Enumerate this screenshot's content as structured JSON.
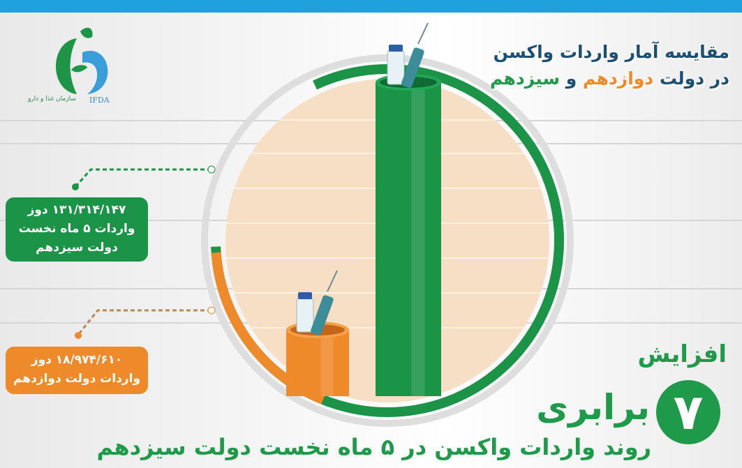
{
  "title": {
    "line1": "مقایسه آمار واردات واکسن",
    "line2_prefix": "در دولت ",
    "line2_twelfth": "دوازدهم",
    "line2_and": " و ",
    "line2_thirteenth": "سیزدهم"
  },
  "logo": {
    "org_name": "سازمان غذا و دارو",
    "abbr": "IFDA"
  },
  "boxes": {
    "thirteenth": {
      "line1": "۱۳۱/۳۱۴/۱۴۷ دوز",
      "line2": "واردات ۵ ماه نخست",
      "line3": "دولت سیزدهم"
    },
    "twelfth": {
      "line1": "۱۸/۹۷۴/۶۱۰ دوز",
      "line2": "واردات دولت دوازدهم"
    }
  },
  "highlight": {
    "increase": "افزایش",
    "factor": "۷",
    "times": "برابری",
    "subtitle": "روند واردات واکسن در ۵ ماه نخست دولت سیزدهم"
  },
  "colors": {
    "twelfth": "#ee8a2a",
    "thirteenth": "#1b9448",
    "title": "#1d4f73",
    "topbar": "#1ea1dc",
    "circle_fill": "#f6dfc4"
  },
  "chart_data": {
    "type": "bar",
    "categories": [
      "واردات دولت دوازدهم",
      "واردات ۵ ماه نخست دولت سیزدهم"
    ],
    "values": [
      18974610,
      131314147
    ],
    "colors": [
      "#ee8a2a",
      "#1b9448"
    ],
    "icons": [
      "vaccine-vial-syringe-icon",
      "vaccine-vial-syringe-icon"
    ]
  }
}
